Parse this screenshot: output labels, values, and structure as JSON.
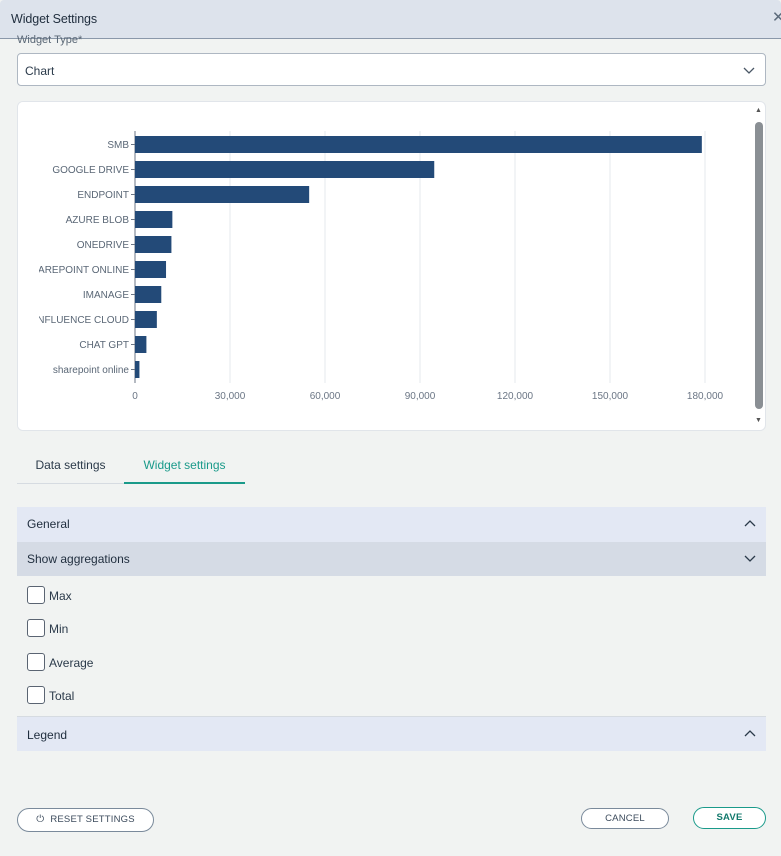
{
  "window": {
    "title": "Widget Settings",
    "close_glyph": "✕"
  },
  "widget_type": {
    "label": "Widget Type*",
    "value": "Chart"
  },
  "tabs": [
    {
      "label": "Data settings",
      "active": false
    },
    {
      "label": "Widget settings",
      "active": true
    }
  ],
  "sections": {
    "general": "General",
    "aggregations": "Show aggregations",
    "legend": "Legend"
  },
  "aggregations": [
    {
      "label": "Max",
      "checked": false
    },
    {
      "label": "Min",
      "checked": false
    },
    {
      "label": "Average",
      "checked": false
    },
    {
      "label": "Total",
      "checked": false
    }
  ],
  "buttons": {
    "reset": "RESET SETTINGS",
    "cancel": "CANCEL",
    "save": "SAVE"
  },
  "colors": {
    "bar": "#234a78",
    "accent": "#1a9a8a"
  },
  "chart_data": {
    "type": "bar",
    "orientation": "horizontal",
    "categories": [
      "SMB",
      "GOOGLE DRIVE",
      "ENDPOINT",
      "AZURE BLOB",
      "ONEDRIVE",
      "SHAREPOINT ONLINE",
      "IMANAGE",
      "CONFLUENCE CLOUD",
      "CHAT GPT",
      "sharepoint online"
    ],
    "category_labels_shown": [
      "SMB",
      "GOOGLE DRIVE",
      "ENDPOINT",
      "AZURE BLOB",
      "ONEDRIVE",
      "IAREPOINT ONLINE",
      "IMANAGE",
      "ONFLUENCE CLOUD",
      "CHAT GPT",
      "sharepoint online"
    ],
    "values": [
      179000,
      94500,
      55000,
      11800,
      11500,
      9800,
      8300,
      6900,
      3600,
      1400
    ],
    "x_ticks": [
      0,
      30000,
      60000,
      90000,
      120000,
      150000,
      180000
    ],
    "x_tick_labels": [
      "0",
      "30,000",
      "60,000",
      "90,000",
      "120,000",
      "150,000",
      "180,000"
    ],
    "xlim": [
      0,
      186000
    ],
    "grid": true
  }
}
